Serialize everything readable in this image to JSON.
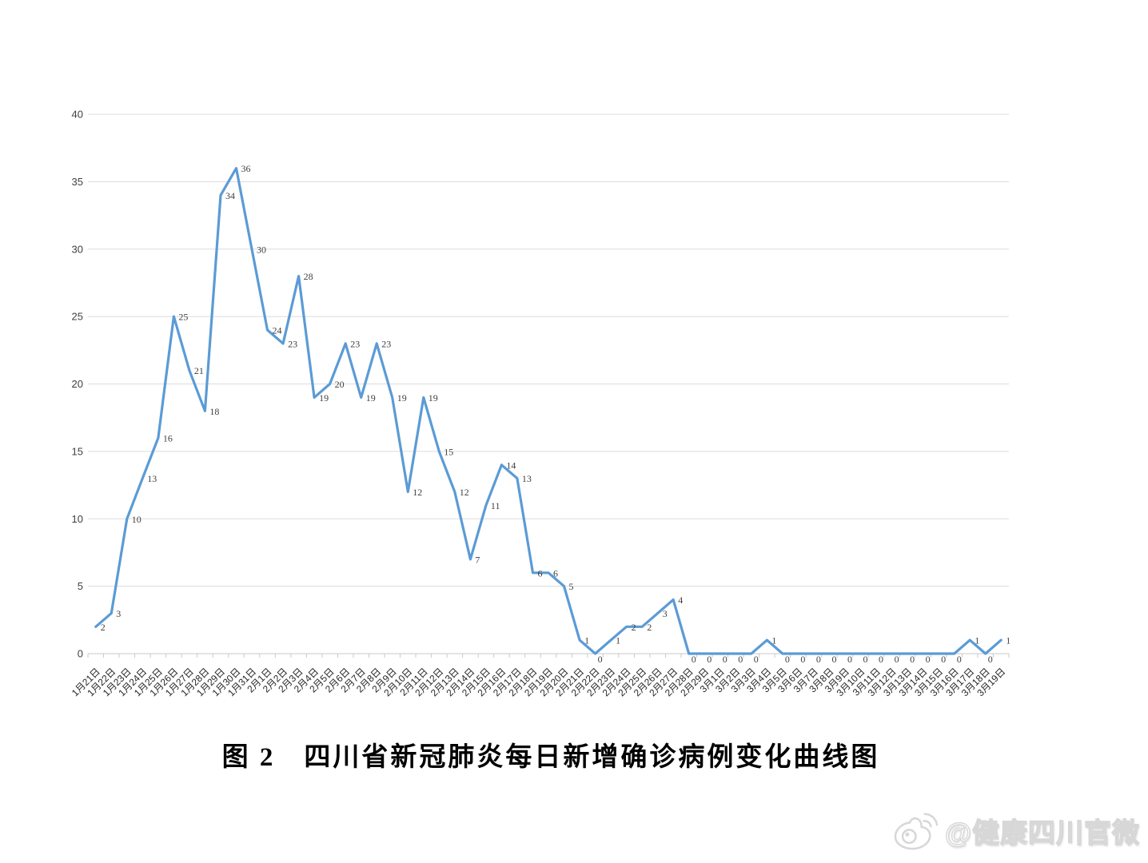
{
  "figure": {
    "caption": "图 2　四川省新冠肺炎每日新增确诊病例变化曲线图",
    "watermark": "@健康四川官微",
    "watermark_icon": "weibo-icon"
  },
  "chart_data": {
    "type": "line",
    "title": "",
    "xlabel": "",
    "ylabel": "",
    "categories": [
      "1月21日",
      "1月22日",
      "1月23日",
      "1月24日",
      "1月25日",
      "1月26日",
      "1月27日",
      "1月28日",
      "1月29日",
      "1月30日",
      "1月31日",
      "2月1日",
      "2月2日",
      "2月3日",
      "2月4日",
      "2月5日",
      "2月6日",
      "2月7日",
      "2月8日",
      "2月9日",
      "2月10日",
      "2月11日",
      "2月12日",
      "2月13日",
      "2月14日",
      "2月15日",
      "2月16日",
      "2月17日",
      "2月18日",
      "2月19日",
      "2月20日",
      "2月21日",
      "2月22日",
      "2月23日",
      "2月24日",
      "2月25日",
      "2月26日",
      "2月27日",
      "2月28日",
      "2月29日",
      "3月1日",
      "3月2日",
      "3月3日",
      "3月4日",
      "3月5日",
      "3月6日",
      "3月7日",
      "3月8日",
      "3月9日",
      "3月10日",
      "3月11日",
      "3月12日",
      "3月13日",
      "3月14日",
      "3月15日",
      "3月16日",
      "3月17日",
      "3月18日",
      "3月19日"
    ],
    "values": [
      2,
      3,
      10,
      13,
      16,
      25,
      21,
      18,
      34,
      36,
      30,
      24,
      23,
      28,
      19,
      20,
      23,
      19,
      23,
      19,
      12,
      19,
      15,
      12,
      7,
      11,
      14,
      13,
      6,
      6,
      5,
      1,
      0,
      1,
      2,
      2,
      3,
      4,
      0,
      0,
      0,
      0,
      0,
      1,
      0,
      0,
      0,
      0,
      0,
      0,
      0,
      0,
      0,
      0,
      0,
      0,
      1,
      0,
      1
    ],
    "data_labels_shown": true,
    "ylim": [
      0,
      40
    ],
    "ytick_step": 5,
    "yticks": [
      0,
      5,
      10,
      15,
      20,
      25,
      30,
      35,
      40
    ],
    "grid": true,
    "legend": "none",
    "line_color": "#5B9BD5",
    "grid_color": "#DCDCDC",
    "axis_color": "#C9C9C9",
    "axis_label_color": "#404040",
    "xtick_label_color": "#262626",
    "data_label_color": "#3F3F3F"
  }
}
